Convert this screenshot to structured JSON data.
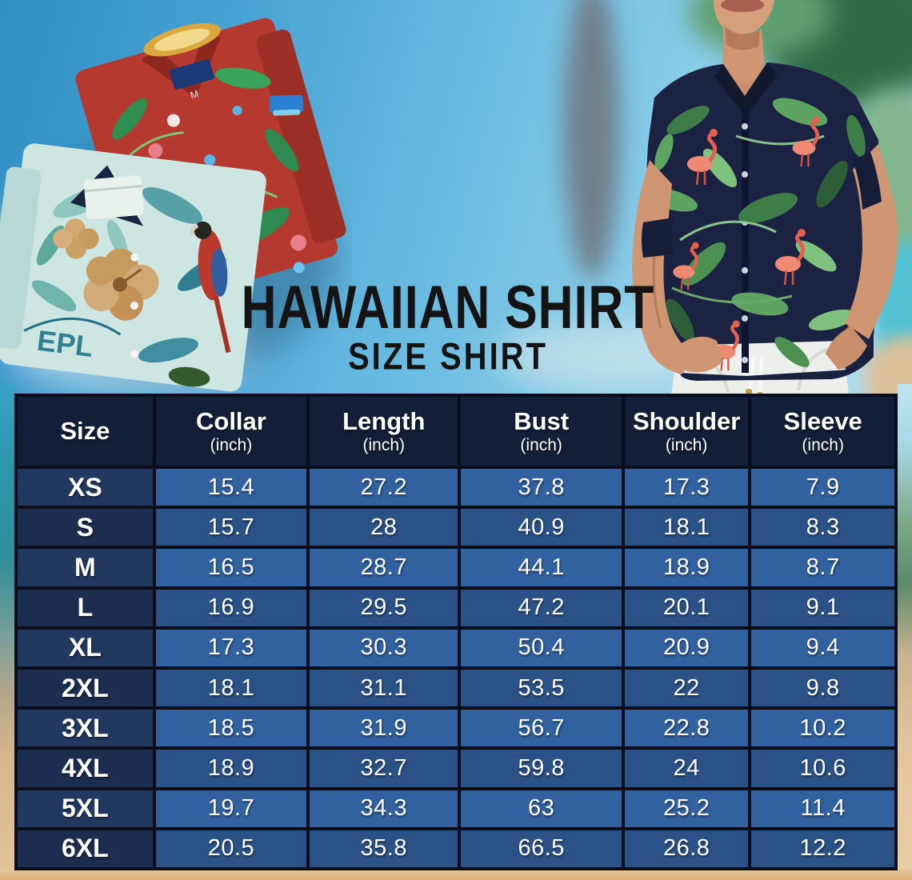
{
  "title": {
    "main": "HAWAIIAN SHIRT",
    "sub": "SIZE SHIRT"
  },
  "chart_data": {
    "type": "table",
    "title": "Hawaiian Shirt Size Shirt",
    "columns": [
      {
        "label": "Size",
        "sub": ""
      },
      {
        "label": "Collar",
        "sub": "(inch)"
      },
      {
        "label": "Length",
        "sub": "(inch)"
      },
      {
        "label": "Bust",
        "sub": "(inch)"
      },
      {
        "label": "Shoulder",
        "sub": "(inch)"
      },
      {
        "label": "Sleeve",
        "sub": "(inch)"
      }
    ],
    "rows": [
      {
        "size": "XS",
        "values": [
          "15.4",
          "27.2",
          "37.8",
          "17.3",
          "7.9"
        ]
      },
      {
        "size": "S",
        "values": [
          "15.7",
          "28",
          "40.9",
          "18.1",
          "8.3"
        ]
      },
      {
        "size": "M",
        "values": [
          "16.5",
          "28.7",
          "44.1",
          "18.9",
          "8.7"
        ]
      },
      {
        "size": "L",
        "values": [
          "16.9",
          "29.5",
          "47.2",
          "20.1",
          "9.1"
        ]
      },
      {
        "size": "XL",
        "values": [
          "17.3",
          "30.3",
          "50.4",
          "20.9",
          "9.4"
        ]
      },
      {
        "size": "2XL",
        "values": [
          "18.1",
          "31.1",
          "53.5",
          "22",
          "9.8"
        ]
      },
      {
        "size": "3XL",
        "values": [
          "18.5",
          "31.9",
          "56.7",
          "22.8",
          "10.2"
        ]
      },
      {
        "size": "4XL",
        "values": [
          "18.9",
          "32.7",
          "59.8",
          "24",
          "10.6"
        ]
      },
      {
        "size": "5XL",
        "values": [
          "19.7",
          "34.3",
          "63",
          "25.2",
          "11.4"
        ]
      },
      {
        "size": "6XL",
        "values": [
          "20.5",
          "35.8",
          "66.5",
          "26.8",
          "12.2"
        ]
      }
    ]
  },
  "photos": {
    "left_shirts_visible_text": "EPL",
    "red_shirt_tag_text": "M"
  },
  "colors": {
    "header_bg": "#131e38",
    "row_odd_bg": "#31619f",
    "row_even_bg": "#2b5287",
    "size_col_odd_bg": "#22395f",
    "size_col_even_bg": "#1b2e50",
    "cell_border": "#0a0e1c",
    "table_text": "#ffffff",
    "title_text": "#141414",
    "sky_top": "#2f8ec4",
    "sky_bottom": "#c6ecf6",
    "sand": "#e2c59c"
  }
}
